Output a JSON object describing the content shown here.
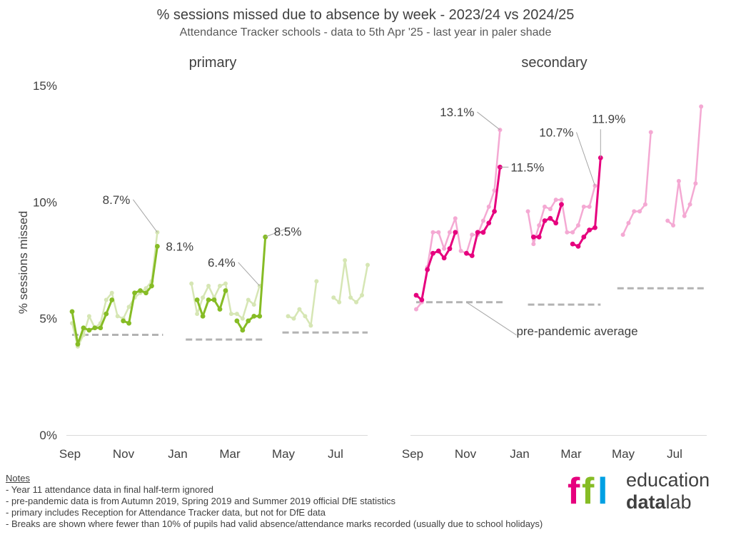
{
  "title": "% sessions missed due to absence by week - 2023/24 vs 2024/25",
  "subtitle": "Attendance Tracker schools - data to 5th Apr '25 - last year in paler shade",
  "ylabel": "% sessions missed",
  "y_ticks": [
    "0%",
    "5%",
    "10%",
    "15%"
  ],
  "x_ticks": [
    "Sep",
    "Nov",
    "Jan",
    "Mar",
    "May",
    "Jul"
  ],
  "chart_data": [
    {
      "type": "line",
      "panel": "primary",
      "title": "primary",
      "ylim": [
        0,
        15
      ],
      "y_ticks": [
        0,
        5,
        10,
        15
      ],
      "x_ticks": [
        "Sep",
        "Nov",
        "Jan",
        "Mar",
        "May",
        "Jul"
      ],
      "colors": {
        "current": "#86bc25",
        "last_year": "#d6e6b4",
        "pre_pandemic": "#b3b3b3"
      },
      "series": [
        {
          "name": "2023/24",
          "segments": [
            [
              [
                0,
                4.8
              ],
              [
                1,
                3.8
              ],
              [
                2,
                4.3
              ],
              [
                3,
                5.1
              ],
              [
                4,
                4.6
              ],
              [
                5,
                4.8
              ],
              [
                6,
                5.8
              ],
              [
                7,
                6.1
              ],
              [
                8,
                5.1
              ],
              [
                9,
                5.0
              ],
              [
                10,
                5.5
              ],
              [
                11,
                5.9
              ],
              [
                12,
                6.1
              ],
              [
                13,
                6.3
              ],
              [
                14,
                6.6
              ],
              [
                15,
                8.7
              ]
            ],
            [
              [
                21,
                6.5
              ],
              [
                22,
                5.2
              ],
              [
                23,
                5.9
              ],
              [
                24,
                6.4
              ],
              [
                25,
                5.9
              ],
              [
                26,
                6.4
              ],
              [
                27,
                6.5
              ],
              [
                28,
                5.2
              ],
              [
                29,
                5.2
              ],
              [
                30,
                5.0
              ],
              [
                31,
                5.8
              ],
              [
                32,
                5.6
              ],
              [
                33,
                6.4
              ]
            ],
            [
              [
                38,
                5.1
              ],
              [
                39,
                5.0
              ],
              [
                40,
                5.4
              ],
              [
                41,
                5.1
              ],
              [
                42,
                4.7
              ],
              [
                43,
                6.6
              ]
            ],
            [
              [
                46,
                5.9
              ],
              [
                47,
                5.7
              ],
              [
                48,
                7.5
              ],
              [
                49,
                5.9
              ],
              [
                50,
                5.7
              ],
              [
                51,
                6.0
              ],
              [
                52,
                7.3
              ]
            ]
          ]
        },
        {
          "name": "2024/25",
          "segments": [
            [
              [
                0,
                5.3
              ],
              [
                1,
                3.9
              ],
              [
                2,
                4.6
              ],
              [
                3,
                4.5
              ],
              [
                4,
                4.6
              ],
              [
                5,
                4.6
              ],
              [
                6,
                5.2
              ],
              [
                7,
                5.8
              ]
            ],
            [
              [
                9,
                4.9
              ],
              [
                10,
                4.8
              ],
              [
                11,
                6.1
              ],
              [
                12,
                6.2
              ],
              [
                13,
                6.1
              ],
              [
                14,
                6.4
              ],
              [
                15,
                8.1
              ]
            ],
            [
              [
                22,
                5.8
              ],
              [
                23,
                5.1
              ],
              [
                24,
                5.8
              ],
              [
                25,
                5.8
              ],
              [
                26,
                5.4
              ],
              [
                27,
                6.2
              ]
            ],
            [
              [
                29,
                4.9
              ],
              [
                30,
                4.5
              ],
              [
                31,
                4.9
              ],
              [
                32,
                5.1
              ],
              [
                33,
                5.1
              ],
              [
                34,
                8.5
              ]
            ]
          ]
        }
      ],
      "pre_pandemic": [
        {
          "start": 0,
          "end": 16,
          "value": 4.3
        },
        {
          "start": 20,
          "end": 34,
          "value": 4.1
        },
        {
          "start": 37,
          "end": 52,
          "value": 4.4
        }
      ],
      "annotations": [
        {
          "label": "8.7%",
          "x": 15,
          "y": 8.7
        },
        {
          "label": "8.1%",
          "x": 15,
          "y": 8.1
        },
        {
          "label": "6.4%",
          "x": 33,
          "y": 6.4
        },
        {
          "label": "8.5%",
          "x": 34,
          "y": 8.5
        }
      ]
    },
    {
      "type": "line",
      "panel": "secondary",
      "title": "secondary",
      "ylim": [
        0,
        15
      ],
      "y_ticks": [
        0,
        5,
        10,
        15
      ],
      "x_ticks": [
        "Sep",
        "Nov",
        "Jan",
        "Mar",
        "May",
        "Jul"
      ],
      "colors": {
        "current": "#e6007e",
        "last_year": "#f4a9d3",
        "pre_pandemic": "#b3b3b3"
      },
      "series": [
        {
          "name": "2023/24",
          "segments": [
            [
              [
                0,
                5.4
              ],
              [
                1,
                5.7
              ],
              [
                2,
                7.2
              ],
              [
                3,
                8.7
              ],
              [
                4,
                8.7
              ],
              [
                5,
                8.0
              ],
              [
                6,
                8.7
              ],
              [
                7,
                9.3
              ],
              [
                8,
                7.9
              ],
              [
                9,
                7.8
              ],
              [
                10,
                8.6
              ],
              [
                11,
                8.6
              ],
              [
                12,
                9.2
              ],
              [
                13,
                9.8
              ],
              [
                14,
                10.5
              ],
              [
                15,
                13.1
              ]
            ],
            [
              [
                20,
                9.6
              ],
              [
                21,
                8.2
              ],
              [
                22,
                9.0
              ],
              [
                23,
                9.8
              ],
              [
                24,
                9.7
              ],
              [
                25,
                10.1
              ],
              [
                26,
                10.1
              ],
              [
                27,
                8.7
              ],
              [
                28,
                8.7
              ],
              [
                29,
                9.0
              ],
              [
                30,
                9.8
              ],
              [
                31,
                9.8
              ],
              [
                32,
                10.7
              ]
            ],
            [
              [
                37,
                8.6
              ],
              [
                38,
                9.1
              ],
              [
                39,
                9.6
              ],
              [
                40,
                9.6
              ],
              [
                41,
                9.9
              ],
              [
                42,
                13.0
              ]
            ],
            [
              [
                45,
                9.2
              ],
              [
                46,
                9.0
              ],
              [
                47,
                10.9
              ],
              [
                48,
                9.4
              ],
              [
                49,
                9.9
              ],
              [
                50,
                10.8
              ],
              [
                51,
                14.1
              ]
            ]
          ]
        },
        {
          "name": "2024/25",
          "segments": [
            [
              [
                0,
                6.0
              ],
              [
                1,
                5.8
              ],
              [
                2,
                7.1
              ],
              [
                3,
                7.8
              ],
              [
                4,
                7.9
              ],
              [
                5,
                7.6
              ],
              [
                6,
                8.0
              ],
              [
                7,
                8.7
              ]
            ],
            [
              [
                9,
                7.8
              ],
              [
                10,
                7.7
              ],
              [
                11,
                8.7
              ],
              [
                12,
                8.7
              ],
              [
                13,
                9.1
              ],
              [
                14,
                9.6
              ],
              [
                15,
                11.5
              ]
            ],
            [
              [
                21,
                8.5
              ],
              [
                22,
                8.5
              ],
              [
                23,
                9.2
              ],
              [
                24,
                9.3
              ],
              [
                25,
                9.1
              ],
              [
                26,
                9.9
              ]
            ],
            [
              [
                28,
                8.2
              ],
              [
                29,
                8.1
              ],
              [
                30,
                8.5
              ],
              [
                31,
                8.8
              ],
              [
                32,
                8.9
              ],
              [
                33,
                11.9
              ]
            ]
          ]
        }
      ],
      "pre_pandemic": [
        {
          "start": 0,
          "end": 16,
          "value": 5.7
        },
        {
          "start": 20,
          "end": 33,
          "value": 5.6
        },
        {
          "start": 36,
          "end": 52,
          "value": 6.3
        }
      ],
      "annotations": [
        {
          "label": "13.1%",
          "x": 15,
          "y": 13.1
        },
        {
          "label": "11.5%",
          "x": 15,
          "y": 11.5
        },
        {
          "label": "10.7%",
          "x": 32,
          "y": 10.7
        },
        {
          "label": "11.9%",
          "x": 33,
          "y": 11.9
        },
        {
          "label": "pre-pandemic average",
          "x": 9,
          "y": 5.7
        }
      ]
    }
  ],
  "notes": {
    "heading": "Notes",
    "items": [
      "-  Year 11 attendance data in final half-term ignored",
      "-  pre-pandemic data is from Autumn 2019, Spring 2019 and Summer 2019 official DfE statistics",
      "-  primary includes Reception for Attendance Tracker data, but not for DfE data",
      "-  Breaks are shown where fewer than 10% of pupils had valid absence/attendance marks recorded (usually due to school holidays)"
    ]
  },
  "logo": {
    "mark": "ffl",
    "line1": "education",
    "line2a": "data",
    "line2b": "lab",
    "colors": [
      "#e6007e",
      "#86bc25",
      "#00a0e3"
    ]
  }
}
